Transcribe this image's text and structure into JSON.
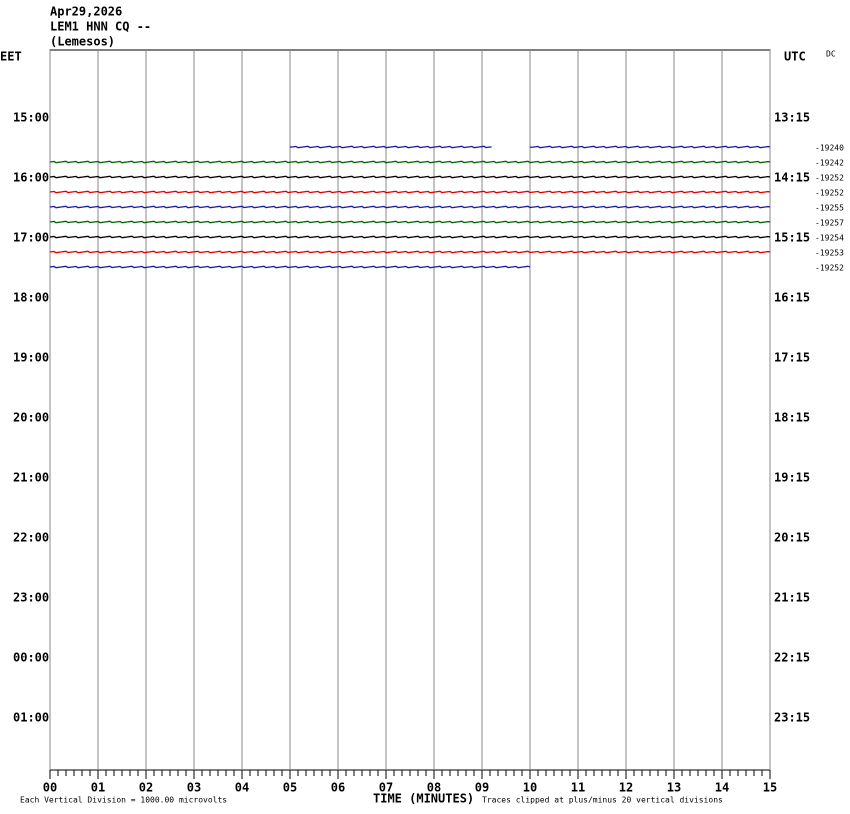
{
  "chart_data": {
    "type": "helicorder",
    "date": "Apr29,2026",
    "station": "LEM1 HNN CQ --",
    "location": "(Lemesos)",
    "left_axis_label": "EET",
    "right_axis_label": "UTC",
    "dc_label": "DC",
    "xlabel": "TIME (MINUTES)",
    "scale_note": "Each Vertical Division = 1000.00 microvolts",
    "clip_note": "Traces clipped at plus/minus 20 vertical divisions",
    "xlim": [
      0,
      15
    ],
    "xticks": [
      {
        "value": 0,
        "label": "00"
      },
      {
        "value": 1,
        "label": "01"
      },
      {
        "value": 2,
        "label": "02"
      },
      {
        "value": 3,
        "label": "03"
      },
      {
        "value": 4,
        "label": "04"
      },
      {
        "value": 5,
        "label": "05"
      },
      {
        "value": 6,
        "label": "06"
      },
      {
        "value": 7,
        "label": "07"
      },
      {
        "value": 8,
        "label": "08"
      },
      {
        "value": 9,
        "label": "09"
      },
      10,
      11,
      12,
      13,
      14,
      15
    ],
    "left_time_labels": [
      "15:00",
      "16:00",
      "17:00",
      "18:00",
      "19:00",
      "20:00",
      "21:00",
      "22:00",
      "23:00",
      "00:00",
      "01:00"
    ],
    "right_time_labels": [
      "13:15",
      "14:15",
      "15:15",
      "16:15",
      "17:15",
      "18:15",
      "19:15",
      "20:15",
      "21:15",
      "22:15",
      "23:15"
    ],
    "traces": [
      {
        "color": "#1c1c9c",
        "dc": -19240,
        "segments": [
          [
            5,
            9.2
          ],
          [
            10,
            15
          ]
        ]
      },
      {
        "color": "#006400",
        "dc": -19242,
        "segments": [
          [
            0,
            15
          ]
        ]
      },
      {
        "color": "#000000",
        "dc": -19252,
        "segments": [
          [
            0,
            15
          ]
        ]
      },
      {
        "color": "#e00000",
        "dc": -19252,
        "segments": [
          [
            0,
            15
          ]
        ]
      },
      {
        "color": "#1c1c9c",
        "dc": -19255,
        "segments": [
          [
            0,
            15
          ]
        ]
      },
      {
        "color": "#006400",
        "dc": -19257,
        "segments": [
          [
            0,
            15
          ]
        ]
      },
      {
        "color": "#000000",
        "dc": -19254,
        "segments": [
          [
            0,
            15
          ]
        ]
      },
      {
        "color": "#e00000",
        "dc": -19253,
        "segments": [
          [
            0,
            15
          ]
        ]
      },
      {
        "color": "#1c1c9c",
        "dc": -19252,
        "segments": [
          [
            0,
            10
          ]
        ]
      }
    ]
  }
}
